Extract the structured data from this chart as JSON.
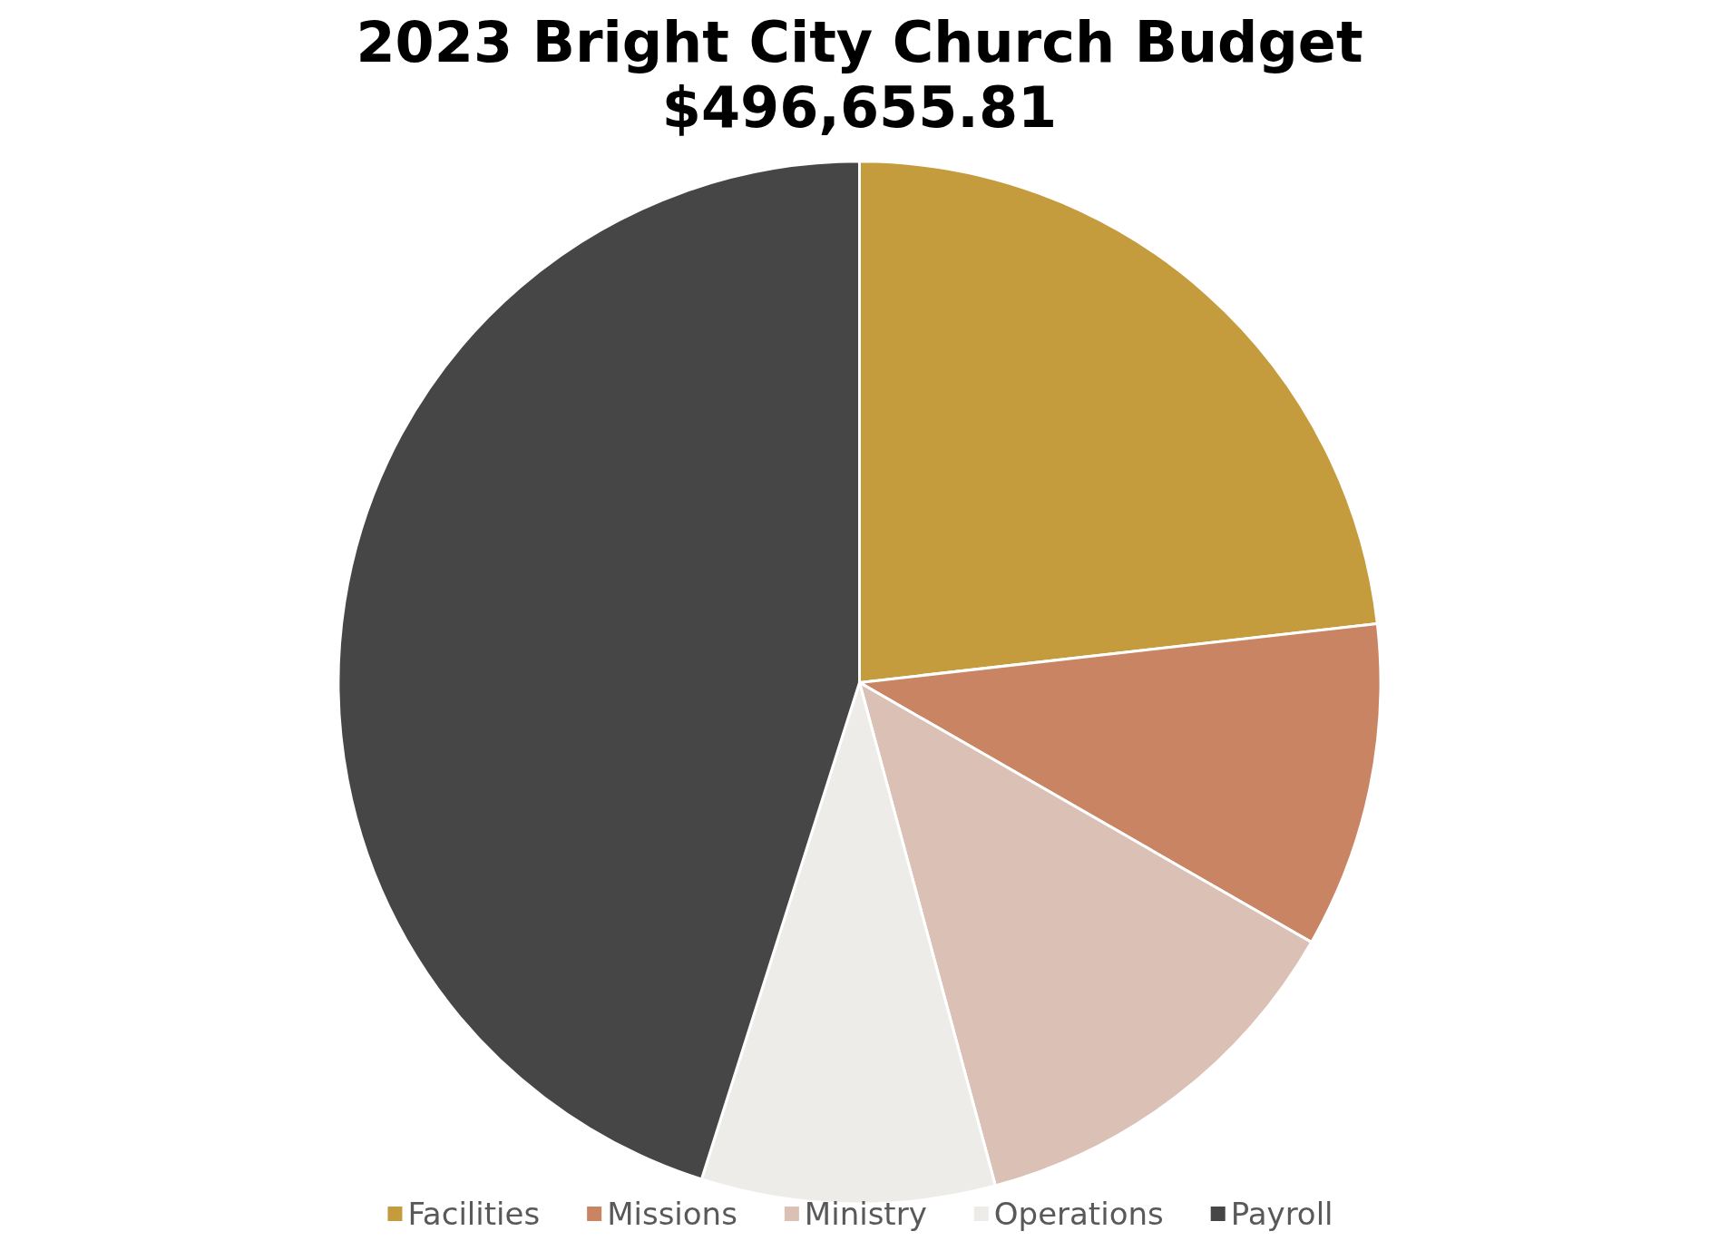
{
  "chart_data": {
    "type": "pie",
    "title": "2023 Bright City Church Budget",
    "subtitle": "$496,655.81",
    "categories": [
      "Facilities",
      "Missions",
      "Ministry",
      "Operations",
      "Payroll"
    ],
    "values": [
      23.2,
      10.1,
      12.5,
      9.1,
      45.1
    ],
    "colors": [
      "#c49c3e",
      "#c88463",
      "#dbc0b6",
      "#edece8",
      "#464646"
    ],
    "legend": "bottom"
  }
}
